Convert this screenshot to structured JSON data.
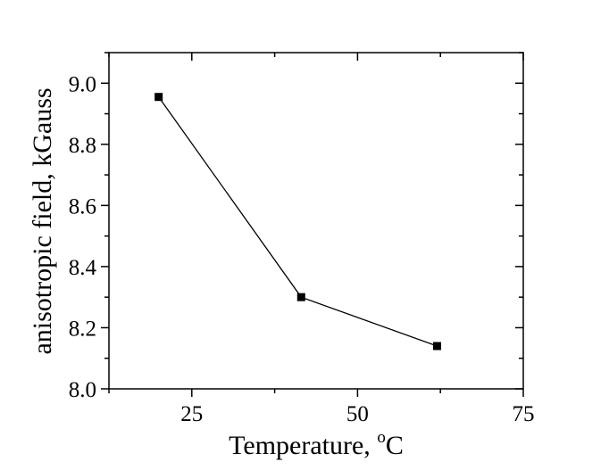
{
  "chart_data": {
    "type": "line",
    "xlabel": "Temperature, ",
    "xlabel_sup": "o",
    "xlabel_unit": "C",
    "ylabel": "anisotropic field, kGauss",
    "xlim": [
      12.5,
      75
    ],
    "ylim": [
      8.0,
      9.1
    ],
    "xticks": [
      25,
      50,
      75
    ],
    "yticks": [
      8.0,
      8.2,
      8.4,
      8.6,
      8.8,
      9.0
    ],
    "x_minor_step": 12.5,
    "y_minor_step": 0.1,
    "grid": false,
    "legend": "none",
    "series": [
      {
        "x": [
          20,
          41.5,
          62
        ],
        "y": [
          8.955,
          8.3,
          8.14
        ],
        "color": "#000000",
        "marker": "square"
      }
    ]
  }
}
